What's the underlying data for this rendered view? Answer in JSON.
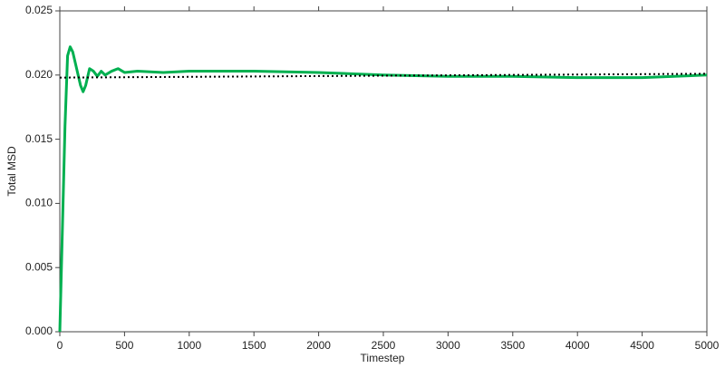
{
  "chart_data": {
    "type": "line",
    "x_label": "Timestep",
    "y_label": "Total MSD",
    "xlim": [
      0,
      5000
    ],
    "ylim": [
      0,
      0.025
    ],
    "xticks": [
      0,
      500,
      1000,
      1500,
      2000,
      2500,
      3000,
      3500,
      4000,
      4500,
      5000
    ],
    "yticks": [
      {
        "value": 0,
        "label": "0.000"
      },
      {
        "value": 0.005,
        "label": "0.005"
      },
      {
        "value": 0.01,
        "label": "0.010"
      },
      {
        "value": 0.015,
        "label": "0.015"
      },
      {
        "value": 0.02,
        "label": "0.020"
      },
      {
        "value": 0.025,
        "label": "0.025"
      }
    ],
    "grid": false,
    "series": [
      {
        "color": "#00b050",
        "style": "solid",
        "x": [
          0,
          20,
          40,
          60,
          80,
          100,
          130,
          160,
          180,
          200,
          230,
          260,
          290,
          320,
          350,
          400,
          450,
          500,
          600,
          800,
          1000,
          1500,
          2000,
          2500,
          3000,
          3500,
          4000,
          4500,
          5000
        ],
        "values": [
          0.0,
          0.008,
          0.016,
          0.0215,
          0.0222,
          0.0218,
          0.0205,
          0.0192,
          0.0187,
          0.0192,
          0.0205,
          0.0203,
          0.0199,
          0.0203,
          0.02,
          0.0203,
          0.0205,
          0.0202,
          0.0203,
          0.0202,
          0.0203,
          0.0203,
          0.0202,
          0.02,
          0.0199,
          0.0199,
          0.0198,
          0.0198,
          0.02
        ]
      },
      {
        "color": "#000000",
        "style": "dotted",
        "x": [
          0,
          5000
        ],
        "values": [
          0.0198,
          0.0201
        ]
      }
    ]
  }
}
